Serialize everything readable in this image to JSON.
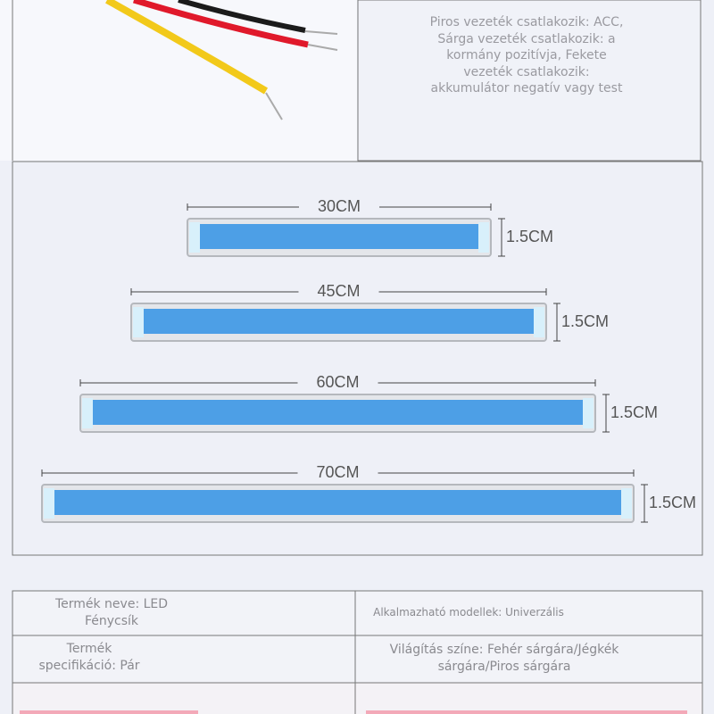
{
  "wiring_note": {
    "lines": [
      "Piros vezeték csatlakozik: ACC,",
      "Sárga vezeték csatlakozik: a",
      "kormány pozitívja, Fekete",
      "vezeték csatlakozik:",
      "akkumulátor negatív vagy test"
    ]
  },
  "strips": [
    {
      "length": "30CM",
      "height": "1.5CM"
    },
    {
      "length": "45CM",
      "height": "1.5CM"
    },
    {
      "length": "60CM",
      "height": "1.5CM"
    },
    {
      "length": "70CM",
      "height": "1.5CM"
    }
  ],
  "table": {
    "rows": [
      [
        "Termék neve: LED Fénycsík",
        "Alkalmazható modellek: Univerzális"
      ],
      [
        "Termék specifikáció: Pár",
        "Világítás színe: Fehér sárgára/Jégkék sárgára/Piros sárgára"
      ]
    ]
  }
}
